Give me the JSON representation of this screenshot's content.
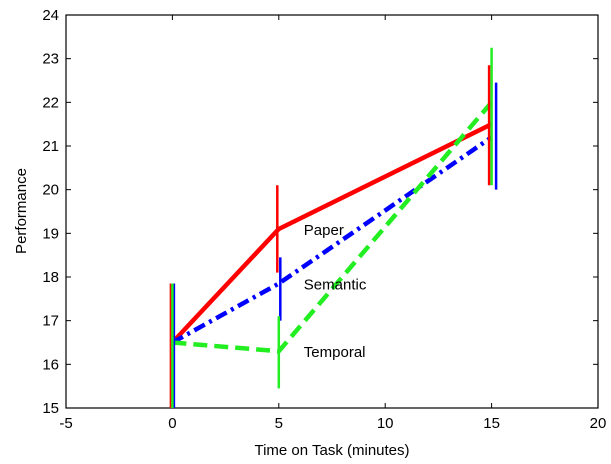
{
  "chart_data": {
    "type": "line",
    "title": "",
    "xlabel": "Time on Task (minutes)",
    "ylabel": "Performance",
    "xlim": [
      -5,
      20
    ],
    "ylim": [
      15,
      24
    ],
    "xticks": [
      "-5",
      "0",
      "5",
      "10",
      "15",
      "20"
    ],
    "yticks": [
      "15",
      "16",
      "17",
      "18",
      "19",
      "20",
      "21",
      "22",
      "23",
      "24"
    ],
    "grid": false,
    "legend": "none",
    "x": [
      0,
      5,
      15
    ],
    "series": [
      {
        "name": "Paper",
        "values": [
          16.5,
          19.1,
          21.5
        ],
        "error_low": [
          15.0,
          18.1,
          20.1
        ],
        "error_high": [
          17.85,
          20.1,
          22.85
        ],
        "color": "#ff0000",
        "linestyle": "solid"
      },
      {
        "name": "Semantic",
        "values": [
          16.5,
          17.85,
          21.2
        ],
        "error_low": [
          15.0,
          17.0,
          20.0
        ],
        "error_high": [
          17.85,
          18.45,
          22.45
        ],
        "color": "#0000ff",
        "linestyle": "dash-dot"
      },
      {
        "name": "Temporal",
        "values": [
          16.5,
          16.3,
          22.0
        ],
        "error_low": [
          15.0,
          15.45,
          20.1
        ],
        "error_high": [
          17.85,
          17.1,
          23.25
        ],
        "color": "#22ee22",
        "linestyle": "dashed"
      }
    ]
  }
}
